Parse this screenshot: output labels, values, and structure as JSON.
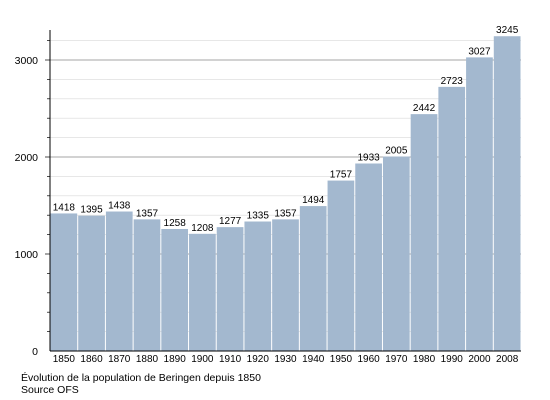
{
  "chart_data": {
    "type": "bar",
    "categories": [
      "1850",
      "1860",
      "1870",
      "1880",
      "1890",
      "1900",
      "1910",
      "1920",
      "1930",
      "1940",
      "1950",
      "1960",
      "1970",
      "1980",
      "1990",
      "2000",
      "2008"
    ],
    "values": [
      1418,
      1395,
      1438,
      1357,
      1258,
      1208,
      1277,
      1335,
      1357,
      1494,
      1757,
      1933,
      2005,
      2442,
      2723,
      3027,
      3245
    ],
    "ylim": [
      0,
      3400
    ],
    "yticks": [
      0,
      1000,
      2000,
      3000
    ],
    "grid": true,
    "bar_color": "#a3b8cf",
    "caption_line1": "Évolution de la population de Beringen depuis 1850",
    "caption_line2": "Source OFS"
  }
}
